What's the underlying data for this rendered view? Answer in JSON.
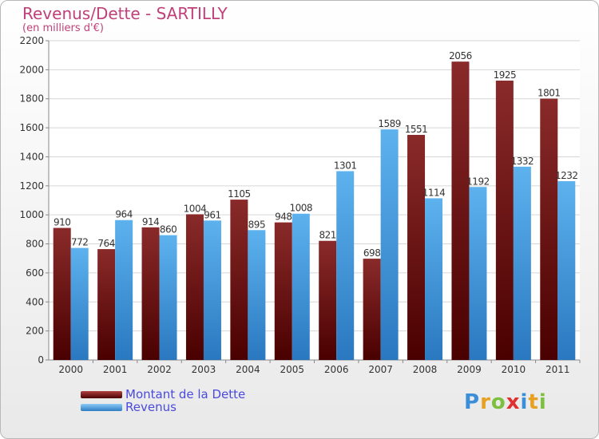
{
  "chart_data": {
    "type": "bar",
    "title": "Revenus/Dette - SARTILLY",
    "subtitle": "(en milliers d'€)",
    "categories": [
      "2000",
      "2001",
      "2002",
      "2003",
      "2004",
      "2005",
      "2006",
      "2007",
      "2008",
      "2009",
      "2010",
      "2011"
    ],
    "series": [
      {
        "name": "Montant de la Dette",
        "color": "#7a1a1a",
        "values": [
          910,
          764,
          914,
          1004,
          1105,
          948,
          821,
          698,
          1551,
          2056,
          1925,
          1801
        ]
      },
      {
        "name": "Revenus",
        "color": "#4a9fe0",
        "values": [
          772,
          964,
          860,
          961,
          895,
          1008,
          1301,
          1589,
          1114,
          1192,
          1332,
          1232
        ]
      }
    ],
    "ylim": [
      0,
      2200
    ],
    "yticks": [
      0,
      200,
      400,
      600,
      800,
      1000,
      1200,
      1400,
      1600,
      1800,
      2000,
      2200
    ],
    "grid": true,
    "legend": "bottom-left"
  },
  "brand": {
    "letters": [
      "P",
      "r",
      "o",
      "x",
      "i",
      "t",
      "i"
    ],
    "colors": [
      "#3a8fd8",
      "#e8a020",
      "#7cc040",
      "#e03030",
      "#3a8fd8",
      "#e8a020",
      "#7cc040"
    ]
  }
}
